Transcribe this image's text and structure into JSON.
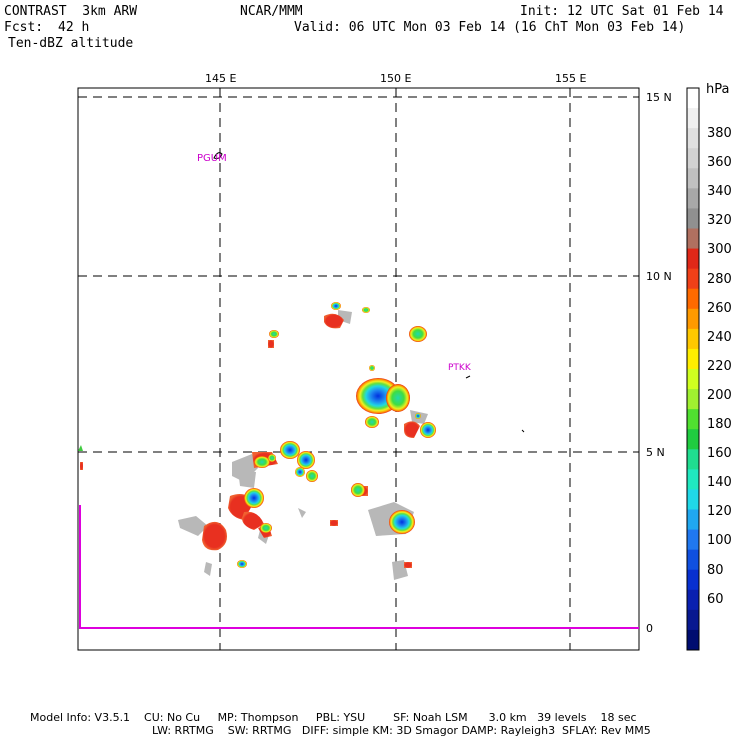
{
  "header": {
    "model": "CONTRAST  3km ARW",
    "center": "NCAR/MMM",
    "init": "Init: 12 UTC Sat 01 Feb 14",
    "fcst_label": "Fcst:",
    "fcst_value": "42 h",
    "valid": "Valid: 06 UTC Mon 03 Feb 14 (16 ChT Mon 03 Feb 14)",
    "field": "Ten-dBZ altitude"
  },
  "map": {
    "lon_labels": [
      "145 E",
      "150 E",
      "155 E"
    ],
    "lat_labels": [
      "15 N",
      "10 N",
      "5 N"
    ],
    "stations": [
      {
        "id": "PGUM",
        "label": "PGUM"
      },
      {
        "id": "PTKK",
        "label": "PTKK"
      }
    ],
    "zero_label": "0",
    "colors": {
      "station": "#cc00cc",
      "timeseries": "#dd00dd"
    }
  },
  "colorbar": {
    "unit": "hPa",
    "labels": [
      "380",
      "360",
      "340",
      "320",
      "300",
      "280",
      "260",
      "240",
      "220",
      "200",
      "180",
      "160",
      "140",
      "120",
      "100",
      "80",
      "60"
    ],
    "colors": [
      "#ffffff",
      "#f0f0f0",
      "#e0e0e0",
      "#d2d2d2",
      "#c0c0c0",
      "#a8a8a8",
      "#909090",
      "#b07060",
      "#e02818",
      "#f04018",
      "#ff6a00",
      "#ff9a00",
      "#ffc800",
      "#ffee00",
      "#d0ff20",
      "#a0f030",
      "#50e030",
      "#20cc40",
      "#20dd90",
      "#20e8c0",
      "#20d8e8",
      "#20a8f0",
      "#2078f0",
      "#1050e0",
      "#0830d0",
      "#0a20b0",
      "#081890",
      "#000c70"
    ]
  },
  "footer": {
    "line1": "Model Info: V3.5.1    CU: No Cu     MP: Thompson     PBL: YSU        SF: Noah LSM      3.0 km   39 levels    18 sec",
    "line2": "LW: RRTMG    SW: RRTMG   DIFF: simple KM: 3D Smagor DAMP: Rayleigh3  SFLAY: Rev MM5"
  }
}
